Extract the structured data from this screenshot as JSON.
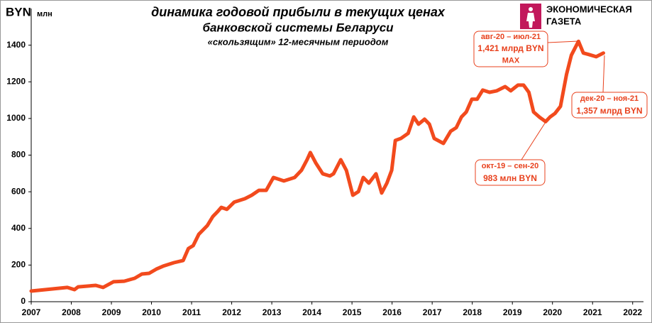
{
  "chart_data": {
    "type": "line",
    "title": "динамика годовой прибыли в текущих ценах",
    "subtitle": "банковской системы Беларуси",
    "subtitle2": "«скользящим» 12-месячным периодом",
    "y_label": "BYN",
    "y_unit": "млн",
    "logo": [
      "ЭКОНОМИЧЕСКАЯ",
      "ГАЗЕТА"
    ],
    "color": "#f24a1d",
    "x": [
      2007.0,
      2007.55,
      2007.9,
      2008.08,
      2008.17,
      2008.61,
      2008.79,
      2009.05,
      2009.32,
      2009.58,
      2009.76,
      2009.94,
      2010.12,
      2010.29,
      2010.56,
      2010.79,
      2010.92,
      2011.04,
      2011.18,
      2011.39,
      2011.53,
      2011.65,
      2011.74,
      2011.88,
      2012.06,
      2012.33,
      2012.5,
      2012.68,
      2012.86,
      2013.04,
      2013.3,
      2013.57,
      2013.74,
      2013.88,
      2013.96,
      2014.1,
      2014.27,
      2014.45,
      2014.54,
      2014.72,
      2014.86,
      2015.02,
      2015.16,
      2015.28,
      2015.42,
      2015.6,
      2015.74,
      2015.87,
      2015.99,
      2016.08,
      2016.22,
      2016.4,
      2016.54,
      2016.66,
      2016.81,
      2016.93,
      2017.05,
      2017.28,
      2017.46,
      2017.6,
      2017.73,
      2017.85,
      2017.99,
      2018.12,
      2018.26,
      2018.43,
      2018.61,
      2018.82,
      2018.96,
      2019.14,
      2019.28,
      2019.41,
      2019.53,
      2019.67,
      2019.83,
      2019.94,
      2020.06,
      2020.2,
      2020.35,
      2020.47,
      2020.65,
      2020.77,
      2020.91,
      2021.09,
      2021.27
    ],
    "values": [
      58,
      70,
      78,
      66,
      81,
      89,
      78,
      109,
      112,
      128,
      151,
      155,
      178,
      194,
      213,
      225,
      290,
      306,
      368,
      415,
      465,
      492,
      515,
      504,
      543,
      562,
      581,
      608,
      608,
      678,
      659,
      678,
      717,
      775,
      814,
      756,
      698,
      686,
      698,
      775,
      717,
      581,
      601,
      678,
      647,
      698,
      593,
      647,
      717,
      880,
      891,
      919,
      1008,
      969,
      996,
      969,
      891,
      864,
      930,
      950,
      1008,
      1035,
      1105,
      1105,
      1155,
      1143,
      1151,
      1174,
      1151,
      1182,
      1182,
      1143,
      1035,
      1008,
      983,
      1008,
      1027,
      1066,
      1240,
      1345,
      1421,
      1357,
      1349,
      1337,
      1357
    ],
    "xlim": [
      2007,
      2022.27
    ],
    "xticks": [
      2007,
      2008,
      2009,
      2010,
      2011,
      2012,
      2013,
      2014,
      2015,
      2016,
      2017,
      2018,
      2019,
      2020,
      2021,
      2022
    ],
    "ylim": [
      0,
      1600
    ],
    "yticks": [
      0,
      200,
      400,
      600,
      800,
      1000,
      1200,
      1400
    ],
    "annotations": [
      {
        "lines": [
          "авг-20 – июл-21",
          "1,421 млрд BYN",
          "MAX"
        ]
      },
      {
        "lines": [
          "дек-20 – ноя-21",
          "1,357 млрд BYN"
        ]
      },
      {
        "lines": [
          "окт-19 – сен-20",
          "983 млн BYN"
        ]
      }
    ]
  }
}
